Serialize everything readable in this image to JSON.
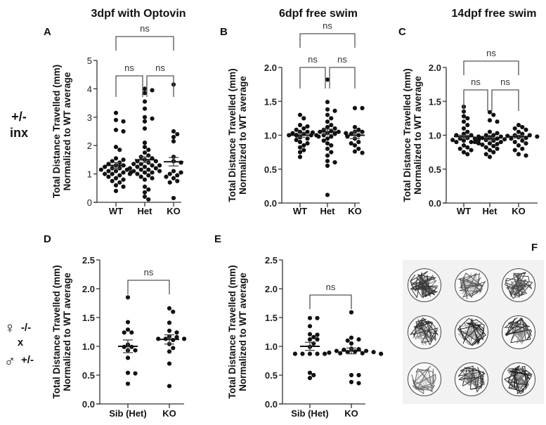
{
  "column_titles": [
    "3dpf with Optovin",
    "6dpf free swim",
    "14dpf free swim"
  ],
  "row_labels": {
    "top": [
      "+/-",
      "inx"
    ],
    "bottom": {
      "female_symbol": "♀",
      "female_genotype": "-/-",
      "cross": "x",
      "male_symbol": "♂",
      "male_genotype": "+/-"
    }
  },
  "colors": {
    "points": "#111111",
    "axes": "#333333",
    "brackets": "#555555",
    "panel_f_bg": "#f2f2f2"
  },
  "chart_data": [
    {
      "panel": "A",
      "type": "scatter",
      "ylabel": [
        "Total Distance Travelled (mm)",
        "Normalized to WT average"
      ],
      "categories": [
        "WT",
        "Het",
        "KO"
      ],
      "ylim": [
        0,
        5
      ],
      "yticks": [
        "0",
        "1",
        "2",
        "3",
        "4",
        "5"
      ],
      "ytick_values": [
        0,
        1,
        2,
        3,
        4,
        5
      ],
      "series": [
        {
          "name": "WT",
          "mean": 1.3,
          "sem": 0.1,
          "values": [
            3.15,
            2.9,
            2.85,
            2.55,
            2.5,
            1.95,
            1.85,
            1.55,
            1.5,
            1.45,
            1.4,
            1.35,
            1.3,
            1.25,
            1.2,
            1.15,
            1.1,
            1.1,
            1.05,
            1.0,
            1.0,
            0.95,
            0.9,
            0.85,
            0.8,
            0.75,
            0.7,
            0.6,
            0.55,
            0.4,
            1.15,
            1.2,
            1.3,
            1.05
          ]
        },
        {
          "name": "Het",
          "mean": 1.5,
          "sem": 0.1,
          "values": [
            4.0,
            3.95,
            3.85,
            3.55,
            3.3,
            3.0,
            2.95,
            2.85,
            2.6,
            2.1,
            1.95,
            1.85,
            1.75,
            1.65,
            1.6,
            1.55,
            1.5,
            1.45,
            1.4,
            1.35,
            1.3,
            1.25,
            1.2,
            1.15,
            1.1,
            1.05,
            1.0,
            0.95,
            0.9,
            0.85,
            0.8,
            0.55,
            0.45,
            0.35,
            0.2,
            0.1,
            1.3,
            1.2,
            1.1,
            1.0,
            1.45,
            1.35,
            1.25,
            1.15,
            1.05
          ]
        },
        {
          "name": "KO",
          "mean": 1.43,
          "sem": 0.15,
          "values": [
            4.15,
            2.5,
            2.4,
            2.3,
            2.15,
            1.6,
            1.45,
            1.4,
            1.1,
            1.05,
            1.0,
            0.95,
            0.9,
            0.85,
            0.75,
            0.7,
            0.15
          ]
        }
      ],
      "comparisons": [
        {
          "pair": [
            "WT",
            "Het"
          ],
          "label": "ns"
        },
        {
          "pair": [
            "Het",
            "KO"
          ],
          "label": "ns"
        },
        {
          "pair": [
            "WT",
            "KO"
          ],
          "label": "ns"
        }
      ]
    },
    {
      "panel": "B",
      "type": "scatter",
      "ylabel": [
        "Total Distance Travelled (mm)",
        "Normalized to WT average"
      ],
      "categories": [
        "WT",
        "Het",
        "KO"
      ],
      "ylim": [
        0,
        2
      ],
      "yticks": [
        "0.0",
        "0.5",
        "1.0",
        "1.5",
        "2.0"
      ],
      "ytick_values": [
        0,
        0.5,
        1,
        1.5,
        2
      ],
      "series": [
        {
          "name": "WT",
          "mean": 1.0,
          "sem": 0.03,
          "values": [
            1.3,
            1.25,
            1.15,
            1.13,
            1.1,
            1.08,
            1.05,
            1.03,
            1.02,
            1.0,
            1.0,
            0.98,
            0.97,
            0.95,
            0.93,
            0.9,
            0.88,
            0.85,
            0.82,
            0.78,
            0.75,
            0.68,
            1.05,
            1.0
          ]
        },
        {
          "name": "Het",
          "mean": 1.05,
          "sem": 0.04,
          "values": [
            1.82,
            1.49,
            1.38,
            1.36,
            1.3,
            1.25,
            1.2,
            1.15,
            1.12,
            1.1,
            1.08,
            1.06,
            1.05,
            1.04,
            1.03,
            1.02,
            1.0,
            0.98,
            0.95,
            0.92,
            0.88,
            0.85,
            0.8,
            0.75,
            0.7,
            0.62,
            0.6,
            0.55,
            0.12,
            1.05,
            1.03,
            1.0
          ]
        },
        {
          "name": "KO",
          "mean": 1.0,
          "sem": 0.05,
          "values": [
            1.4,
            1.4,
            1.12,
            1.08,
            1.05,
            1.05,
            1.02,
            1.0,
            0.98,
            0.95,
            0.9,
            0.88,
            0.85,
            0.8,
            0.76,
            0.74
          ]
        }
      ],
      "comparisons": [
        {
          "pair": [
            "WT",
            "Het"
          ],
          "label": "ns"
        },
        {
          "pair": [
            "Het",
            "KO"
          ],
          "label": "ns"
        },
        {
          "pair": [
            "WT",
            "KO"
          ],
          "label": "ns"
        }
      ]
    },
    {
      "panel": "C",
      "type": "scatter",
      "ylabel": [
        "Total Distance Travelled (mm)",
        "Normalized to WT average"
      ],
      "categories": [
        "WT",
        "Het",
        "KO"
      ],
      "ylim": [
        0,
        2
      ],
      "yticks": [
        "0.0",
        "0.5",
        "1.0",
        "1.5",
        "2.0"
      ],
      "ytick_values": [
        0,
        0.5,
        1,
        1.5,
        2
      ],
      "series": [
        {
          "name": "WT",
          "mean": 0.98,
          "sem": 0.02,
          "values": [
            1.42,
            1.35,
            1.28,
            1.25,
            1.2,
            1.15,
            1.1,
            1.05,
            1.02,
            1.0,
            0.98,
            0.96,
            0.95,
            0.93,
            0.92,
            0.9,
            0.88,
            0.85,
            0.82,
            0.8,
            0.78,
            0.75,
            0.72,
            1.0,
            0.95,
            0.9
          ]
        },
        {
          "name": "Het",
          "mean": 0.95,
          "sem": 0.02,
          "values": [
            1.34,
            1.3,
            1.22,
            1.2,
            1.05,
            1.03,
            1.0,
            0.98,
            0.96,
            0.95,
            0.94,
            0.93,
            0.92,
            0.9,
            0.88,
            0.86,
            0.84,
            0.82,
            0.8,
            0.78,
            0.75,
            0.72,
            0.68,
            1.0,
            0.97,
            0.93,
            0.9,
            0.87
          ]
        },
        {
          "name": "KO",
          "mean": 0.98,
          "sem": 0.02,
          "values": [
            1.15,
            1.12,
            1.1,
            1.08,
            1.05,
            1.02,
            1.0,
            0.99,
            0.98,
            0.96,
            0.95,
            0.92,
            0.9,
            0.88,
            0.85,
            0.8,
            0.78,
            0.72,
            0.7,
            1.0,
            0.97
          ]
        }
      ],
      "comparisons": [
        {
          "pair": [
            "WT",
            "Het"
          ],
          "label": "ns"
        },
        {
          "pair": [
            "Het",
            "KO"
          ],
          "label": "ns"
        },
        {
          "pair": [
            "WT",
            "KO"
          ],
          "label": "ns"
        }
      ]
    },
    {
      "panel": "D",
      "type": "scatter",
      "ylabel": [
        "Total Distance Travelled (mm)",
        "Normalized to WT average"
      ],
      "categories": [
        "Sib (Het)",
        "KO"
      ],
      "ylim": [
        0,
        2.5
      ],
      "yticks": [
        "0.0",
        "0.5",
        "1.0",
        "1.5",
        "2.0",
        "2.5"
      ],
      "ytick_values": [
        0,
        0.5,
        1,
        1.5,
        2,
        2.5
      ],
      "series": [
        {
          "name": "Sib (Het)",
          "mean": 1.0,
          "sem": 0.11,
          "values": [
            1.85,
            1.42,
            1.29,
            1.24,
            1.24,
            1.03,
            0.99,
            0.99,
            0.93,
            0.93,
            0.8,
            0.54,
            0.53,
            0.35
          ]
        },
        {
          "name": "KO",
          "mean": 1.12,
          "sem": 0.08,
          "values": [
            1.66,
            1.6,
            1.41,
            1.27,
            1.24,
            1.17,
            1.16,
            1.13,
            1.13,
            1.13,
            1.11,
            1.04,
            0.97,
            0.91,
            0.7,
            0.31
          ]
        }
      ],
      "comparisons": [
        {
          "pair": [
            "Sib (Het)",
            "KO"
          ],
          "label": "ns"
        }
      ]
    },
    {
      "panel": "E",
      "type": "scatter",
      "ylabel": [
        "Total Distance Travelled (mm)",
        "Normalized to WT average"
      ],
      "categories": [
        "Sib (Het)",
        "KO"
      ],
      "ylim": [
        0,
        2.5
      ],
      "yticks": [
        "0.0",
        "0.5",
        "1.0",
        "1.5",
        "2.0",
        "2.5"
      ],
      "ytick_values": [
        0,
        0.5,
        1,
        1.5,
        2,
        2.5
      ],
      "series": [
        {
          "name": "Sib (Het)",
          "mean": 1.0,
          "sem": 0.07,
          "values": [
            1.49,
            1.49,
            1.35,
            1.21,
            1.2,
            1.16,
            1.12,
            1.12,
            1.05,
            0.99,
            0.87,
            0.87,
            0.87,
            0.87,
            0.87,
            0.54,
            0.5,
            0.45
          ]
        },
        {
          "name": "KO",
          "mean": 0.92,
          "sem": 0.05,
          "values": [
            1.59,
            1.15,
            1.12,
            1.1,
            1.05,
            0.96,
            0.95,
            0.94,
            0.92,
            0.92,
            0.91,
            0.9,
            0.9,
            0.89,
            0.88,
            0.88,
            0.87,
            0.5,
            0.5,
            0.38,
            0.36
          ]
        }
      ],
      "comparisons": [
        {
          "pair": [
            "Sib (Het)",
            "KO"
          ],
          "label": "ns"
        }
      ]
    }
  ],
  "panel_f": {
    "label": "F",
    "content": "locomotion-tracking-wells",
    "rows": 3,
    "cols": 3
  }
}
